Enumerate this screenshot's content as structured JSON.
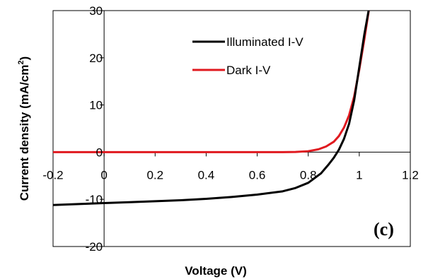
{
  "chart_data": {
    "type": "line",
    "panel_label": "(c)",
    "xlabel": "Voltage (V)",
    "ylabel_main": "Current density (mA/cm",
    "ylabel_sup": "2",
    "ylabel_end": ")",
    "xlim": [
      -0.2,
      1.2
    ],
    "ylim": [
      -20,
      30
    ],
    "x_ticks": [
      -0.2,
      0,
      0.2,
      0.4,
      0.6,
      0.8,
      1,
      1.2
    ],
    "x_tick_labels": [
      "-0.2",
      "0",
      "0.2",
      "0.4",
      "0.6",
      "0.8",
      "1",
      "1.2"
    ],
    "y_ticks": [
      -20,
      -10,
      0,
      10,
      20,
      30
    ],
    "y_tick_labels": [
      "-20",
      "-10",
      "0",
      "10",
      "20",
      "30"
    ],
    "legend_position": "top-right",
    "series": [
      {
        "name": "Illuminated I-V",
        "color": "#000000",
        "x": [
          -0.2,
          -0.1,
          0.0,
          0.1,
          0.2,
          0.3,
          0.4,
          0.5,
          0.6,
          0.7,
          0.75,
          0.8,
          0.85,
          0.88,
          0.9,
          0.92,
          0.94,
          0.96,
          0.98,
          1.0,
          1.02,
          1.04
        ],
        "y": [
          -11.2,
          -11.0,
          -10.8,
          -10.6,
          -10.4,
          -10.2,
          -9.9,
          -9.5,
          -9.0,
          -8.3,
          -7.6,
          -6.5,
          -4.5,
          -2.6,
          -1.2,
          0.5,
          2.8,
          6.0,
          11.0,
          18.0,
          25.0,
          31.0
        ]
      },
      {
        "name": "Dark I-V",
        "color": "#e0191f",
        "x": [
          -0.2,
          0.0,
          0.2,
          0.4,
          0.6,
          0.7,
          0.75,
          0.8,
          0.84,
          0.87,
          0.9,
          0.92,
          0.94,
          0.96,
          0.98,
          1.0,
          1.02,
          1.04
        ],
        "y": [
          0,
          0,
          0,
          0,
          0,
          0,
          0.05,
          0.2,
          0.6,
          1.2,
          2.2,
          3.4,
          5.2,
          7.8,
          11.8,
          17.5,
          24.0,
          31.0
        ]
      }
    ]
  }
}
